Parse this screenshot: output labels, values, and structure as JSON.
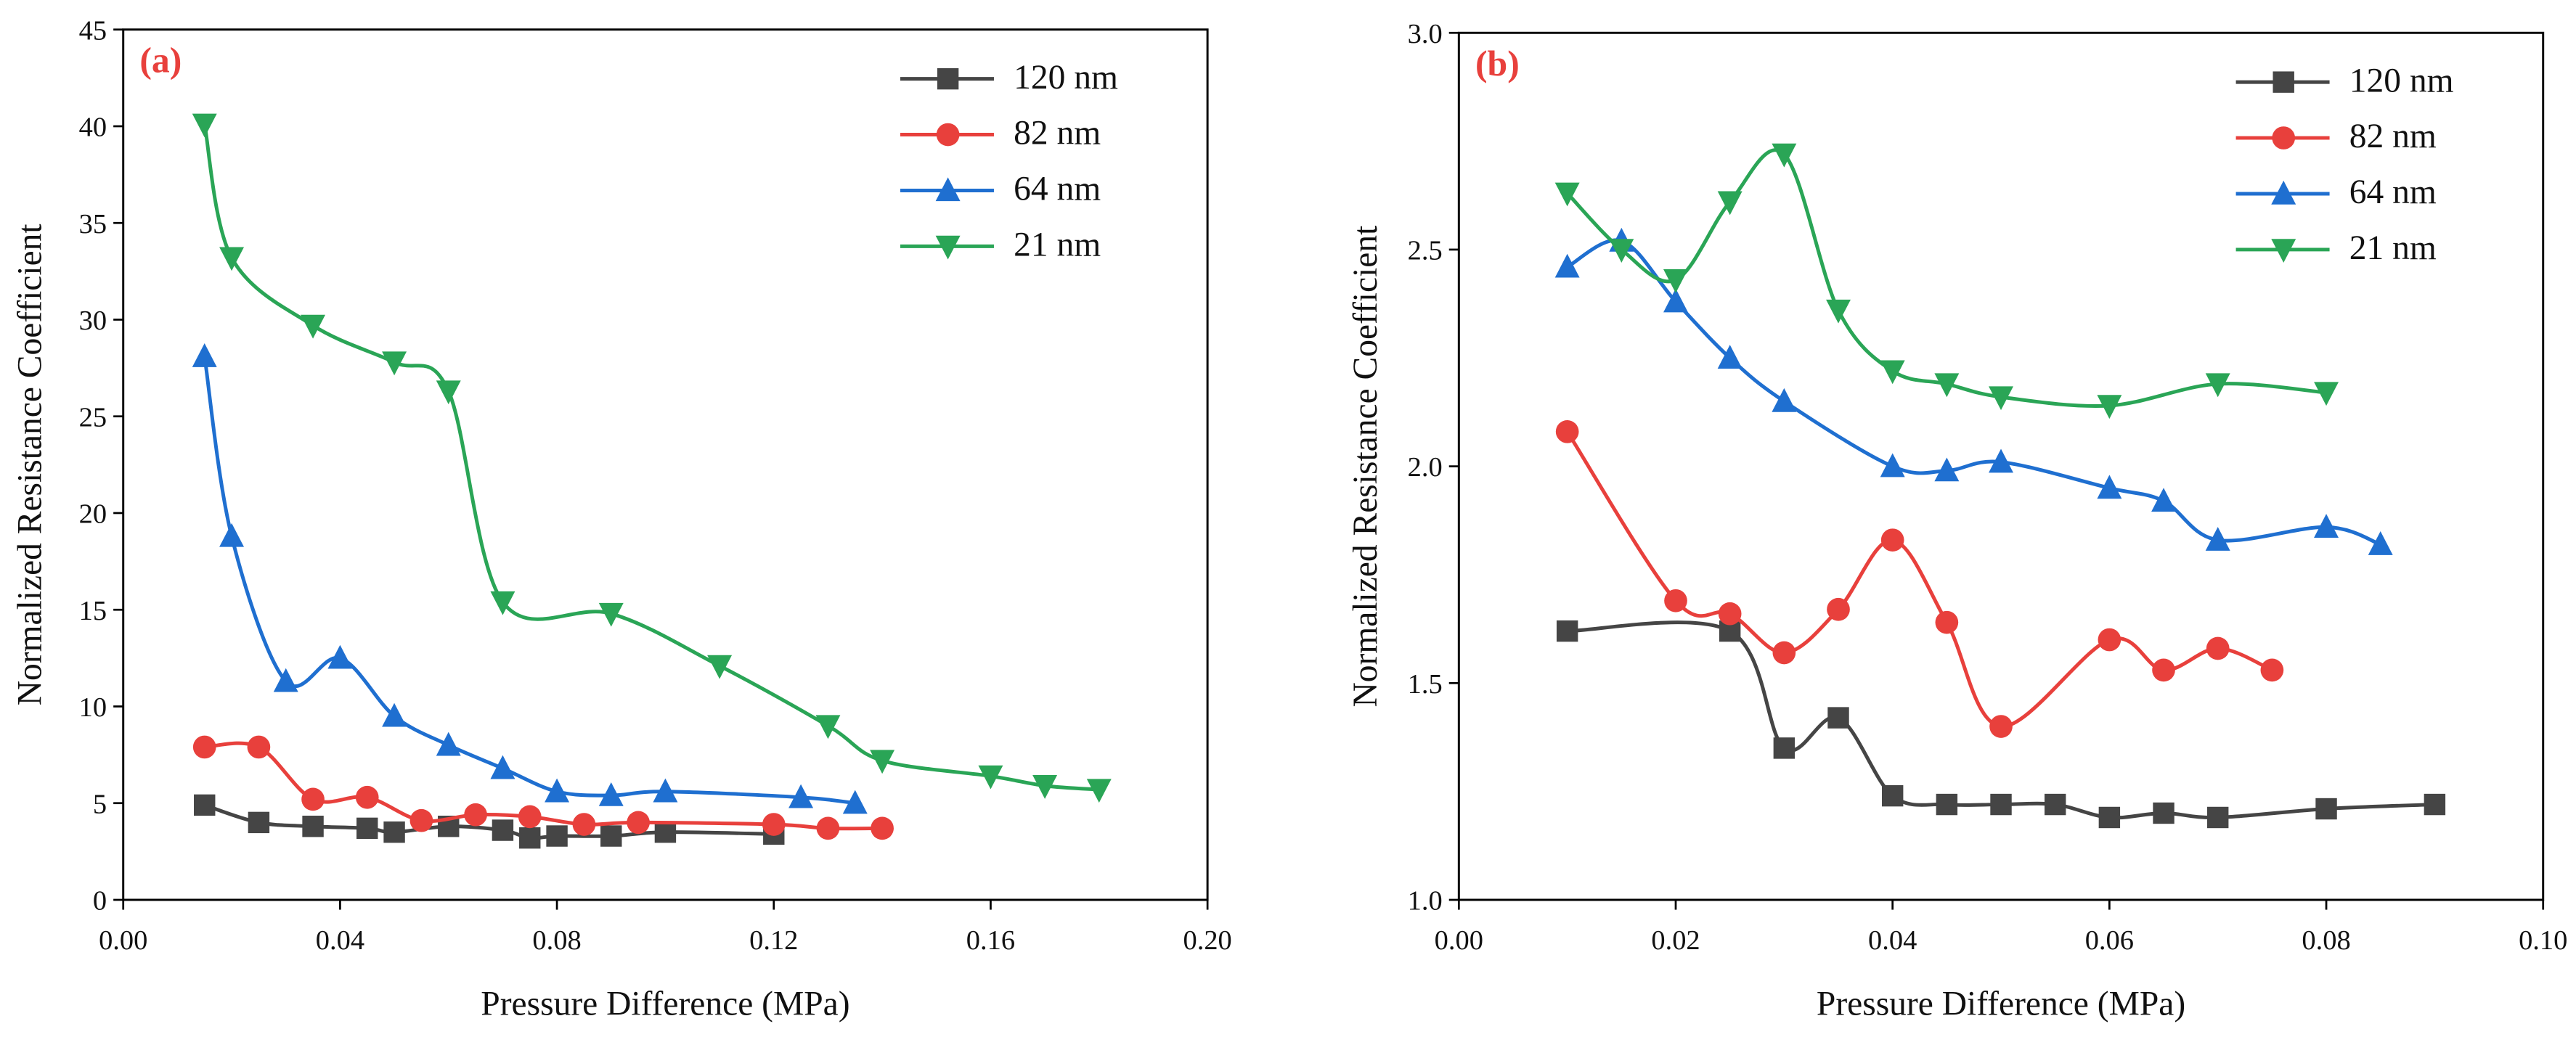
{
  "chart_data": [
    {
      "type": "line",
      "panel_label": "(a)",
      "x_label": "Pressure Difference (MPa)",
      "y_label": "Normalized Resistance Coefficient",
      "xlim": [
        0,
        0.2
      ],
      "xticks": [
        {
          "value": 0,
          "label": "0.00"
        },
        {
          "value": 0.04,
          "label": "0.04"
        },
        {
          "value": 0.08,
          "label": "0.08"
        },
        {
          "value": 0.12,
          "label": "0.12"
        },
        {
          "value": 0.16,
          "label": "0.16"
        },
        {
          "value": 0.2,
          "label": "0.20"
        }
      ],
      "ylim": [
        0,
        45
      ],
      "yticks": [
        0,
        5,
        10,
        15,
        20,
        25,
        30,
        35,
        40,
        45
      ],
      "legend": "upper right",
      "smooth": true,
      "series": [
        {
          "name": "120 nm",
          "color": "#454545",
          "marker": "square",
          "x": [
            0.015,
            0.025,
            0.035,
            0.045,
            0.05,
            0.06,
            0.07,
            0.075,
            0.08,
            0.09,
            0.1,
            0.12
          ],
          "values": [
            4.9,
            4.0,
            3.8,
            3.7,
            3.5,
            3.8,
            3.6,
            3.2,
            3.3,
            3.3,
            3.5,
            3.4
          ]
        },
        {
          "name": "82 nm",
          "color": "#e8403c",
          "marker": "circle",
          "x": [
            0.015,
            0.025,
            0.035,
            0.045,
            0.055,
            0.065,
            0.075,
            0.085,
            0.095,
            0.12,
            0.13,
            0.14
          ],
          "values": [
            7.9,
            7.9,
            5.2,
            5.3,
            4.1,
            4.4,
            4.3,
            3.9,
            4.0,
            3.9,
            3.7,
            3.7
          ]
        },
        {
          "name": "64 nm",
          "color": "#1f6fd0",
          "marker": "triangle-up",
          "x": [
            0.015,
            0.02,
            0.03,
            0.04,
            0.05,
            0.06,
            0.07,
            0.08,
            0.09,
            0.1,
            0.125,
            0.135
          ],
          "values": [
            28.1,
            18.8,
            11.3,
            12.5,
            9.5,
            8.0,
            6.8,
            5.6,
            5.4,
            5.6,
            5.3,
            5.0
          ]
        },
        {
          "name": "21 nm",
          "color": "#2aa556",
          "marker": "triangle-down",
          "x": [
            0.015,
            0.02,
            0.035,
            0.05,
            0.06,
            0.07,
            0.09,
            0.11,
            0.13,
            0.14,
            0.16,
            0.17,
            0.18
          ],
          "values": [
            40.1,
            33.2,
            29.7,
            27.8,
            26.3,
            15.4,
            14.8,
            12.1,
            9.0,
            7.2,
            6.4,
            5.9,
            5.7
          ]
        }
      ]
    },
    {
      "type": "line",
      "panel_label": "(b)",
      "x_label": "Pressure Difference (MPa)",
      "y_label": "Normalized Resistance Coefficient",
      "xlim": [
        0,
        0.1
      ],
      "xticks": [
        {
          "value": 0,
          "label": "0.00"
        },
        {
          "value": 0.02,
          "label": "0.02"
        },
        {
          "value": 0.04,
          "label": "0.04"
        },
        {
          "value": 0.06,
          "label": "0.06"
        },
        {
          "value": 0.08,
          "label": "0.08"
        },
        {
          "value": 0.1,
          "label": "0.10"
        }
      ],
      "ylim": [
        1,
        3
      ],
      "yticks": [
        {
          "value": 1,
          "label": "1.0"
        },
        {
          "value": 1.5,
          "label": "1.5"
        },
        {
          "value": 2,
          "label": "2.0"
        },
        {
          "value": 2.5,
          "label": "2.5"
        },
        {
          "value": 3,
          "label": "3.0"
        }
      ],
      "legend": "upper right",
      "smooth": true,
      "series": [
        {
          "name": "120 nm",
          "color": "#454545",
          "marker": "square",
          "x": [
            0.01,
            0.025,
            0.03,
            0.035,
            0.04,
            0.045,
            0.05,
            0.055,
            0.06,
            0.065,
            0.07,
            0.08,
            0.09
          ],
          "values": [
            1.62,
            1.62,
            1.35,
            1.42,
            1.24,
            1.22,
            1.22,
            1.22,
            1.19,
            1.2,
            1.19,
            1.21,
            1.22
          ]
        },
        {
          "name": "82 nm",
          "color": "#e8403c",
          "marker": "circle",
          "x": [
            0.01,
            0.02,
            0.025,
            0.03,
            0.035,
            0.04,
            0.045,
            0.05,
            0.06,
            0.065,
            0.07,
            0.075
          ],
          "values": [
            2.08,
            1.69,
            1.66,
            1.57,
            1.67,
            1.83,
            1.64,
            1.4,
            1.6,
            1.53,
            1.58,
            1.53
          ]
        },
        {
          "name": "64 nm",
          "color": "#1f6fd0",
          "marker": "triangle-up",
          "x": [
            0.01,
            0.015,
            0.02,
            0.025,
            0.03,
            0.04,
            0.045,
            0.05,
            0.06,
            0.065,
            0.07,
            0.08,
            0.085
          ],
          "values": [
            2.46,
            2.52,
            2.38,
            2.25,
            2.15,
            2.0,
            1.99,
            2.01,
            1.95,
            1.92,
            1.83,
            1.86,
            1.82
          ]
        },
        {
          "name": "21 nm",
          "color": "#2aa556",
          "marker": "triangle-down",
          "x": [
            0.01,
            0.015,
            0.02,
            0.025,
            0.03,
            0.035,
            0.04,
            0.045,
            0.05,
            0.06,
            0.07,
            0.08
          ],
          "values": [
            2.63,
            2.5,
            2.43,
            2.61,
            2.72,
            2.36,
            2.22,
            2.19,
            2.16,
            2.14,
            2.19,
            2.17
          ]
        }
      ]
    }
  ]
}
